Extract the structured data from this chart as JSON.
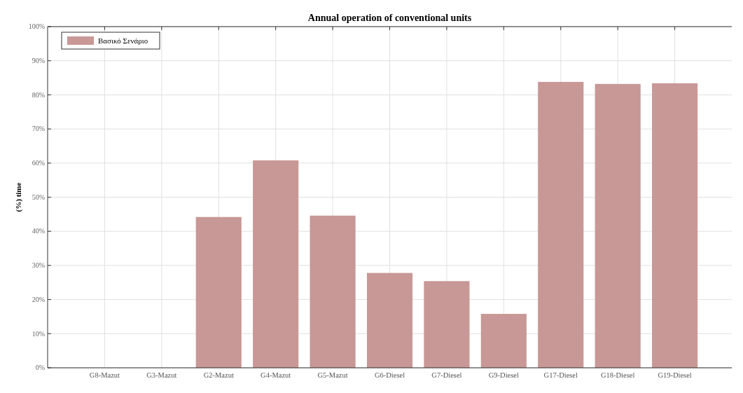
{
  "chart_data": {
    "type": "bar",
    "title": "Annual operation of conventional units",
    "ylabel": "(%) time",
    "categories": [
      "G8-Mazut",
      "G3-Mazut",
      "G2-Mazut",
      "G4-Mazut",
      "G5-Mazut",
      "G6-Diesel",
      "G7-Diesel",
      "G9-Diesel",
      "G17-Diesel",
      "G18-Diesel",
      "G19-Diesel"
    ],
    "series": [
      {
        "name": "Βασικό Σενάριο",
        "color": "#c89896",
        "values": [
          0,
          0,
          44.2,
          60.8,
          44.6,
          27.8,
          25.4,
          15.8,
          83.8,
          83.2,
          83.4
        ]
      }
    ],
    "ylim": [
      0,
      100
    ],
    "yticks": [
      {
        "value": 0,
        "label": "0%"
      },
      {
        "value": 10,
        "label": "10%"
      },
      {
        "value": 20,
        "label": "20%"
      },
      {
        "value": 30,
        "label": "30%"
      },
      {
        "value": 40,
        "label": "40%"
      },
      {
        "value": 50,
        "label": "50%"
      },
      {
        "value": 60,
        "label": "60%"
      },
      {
        "value": 70,
        "label": "70%"
      },
      {
        "value": 80,
        "label": "80%"
      },
      {
        "value": 90,
        "label": "90%"
      },
      {
        "value": 100,
        "label": "100%"
      }
    ],
    "grid": true,
    "legend": "top left"
  }
}
